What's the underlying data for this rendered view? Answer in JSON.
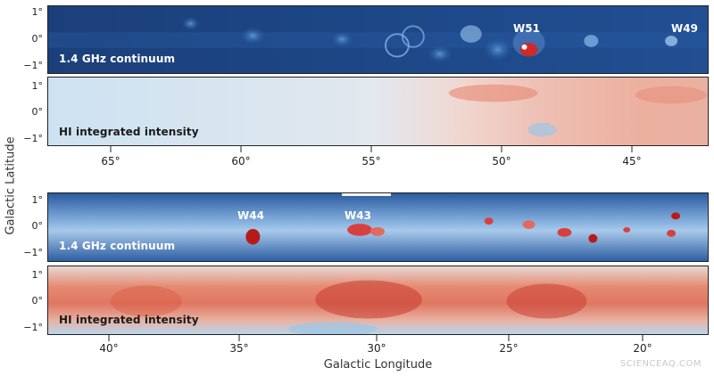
{
  "axes": {
    "y_label": "Galactic Latitude",
    "x_label": "Galactic Longitude",
    "lat_ticks": [
      "1°",
      "0°",
      "−1°"
    ],
    "top_lon_ticks": [
      "65°",
      "60°",
      "55°",
      "50°",
      "45°"
    ],
    "bottom_lon_ticks": [
      "40°",
      "35°",
      "30°",
      "25°",
      "20°"
    ]
  },
  "panels": [
    {
      "label": "1.4 GHz continuum",
      "sources": [
        "W51",
        "W49"
      ]
    },
    {
      "label": "HI integrated intensity"
    },
    {
      "label": "1.4 GHz continuum",
      "sources": [
        "W44",
        "W43"
      ]
    },
    {
      "label": "HI integrated intensity"
    }
  ],
  "colors": {
    "continuum_bg": "#1f4f8f",
    "hi_low": "#cfe3f2",
    "hi_high": "#d84a3a",
    "source_red": "#b81a1a"
  },
  "watermark": "SCIENCEAQ.COM"
}
